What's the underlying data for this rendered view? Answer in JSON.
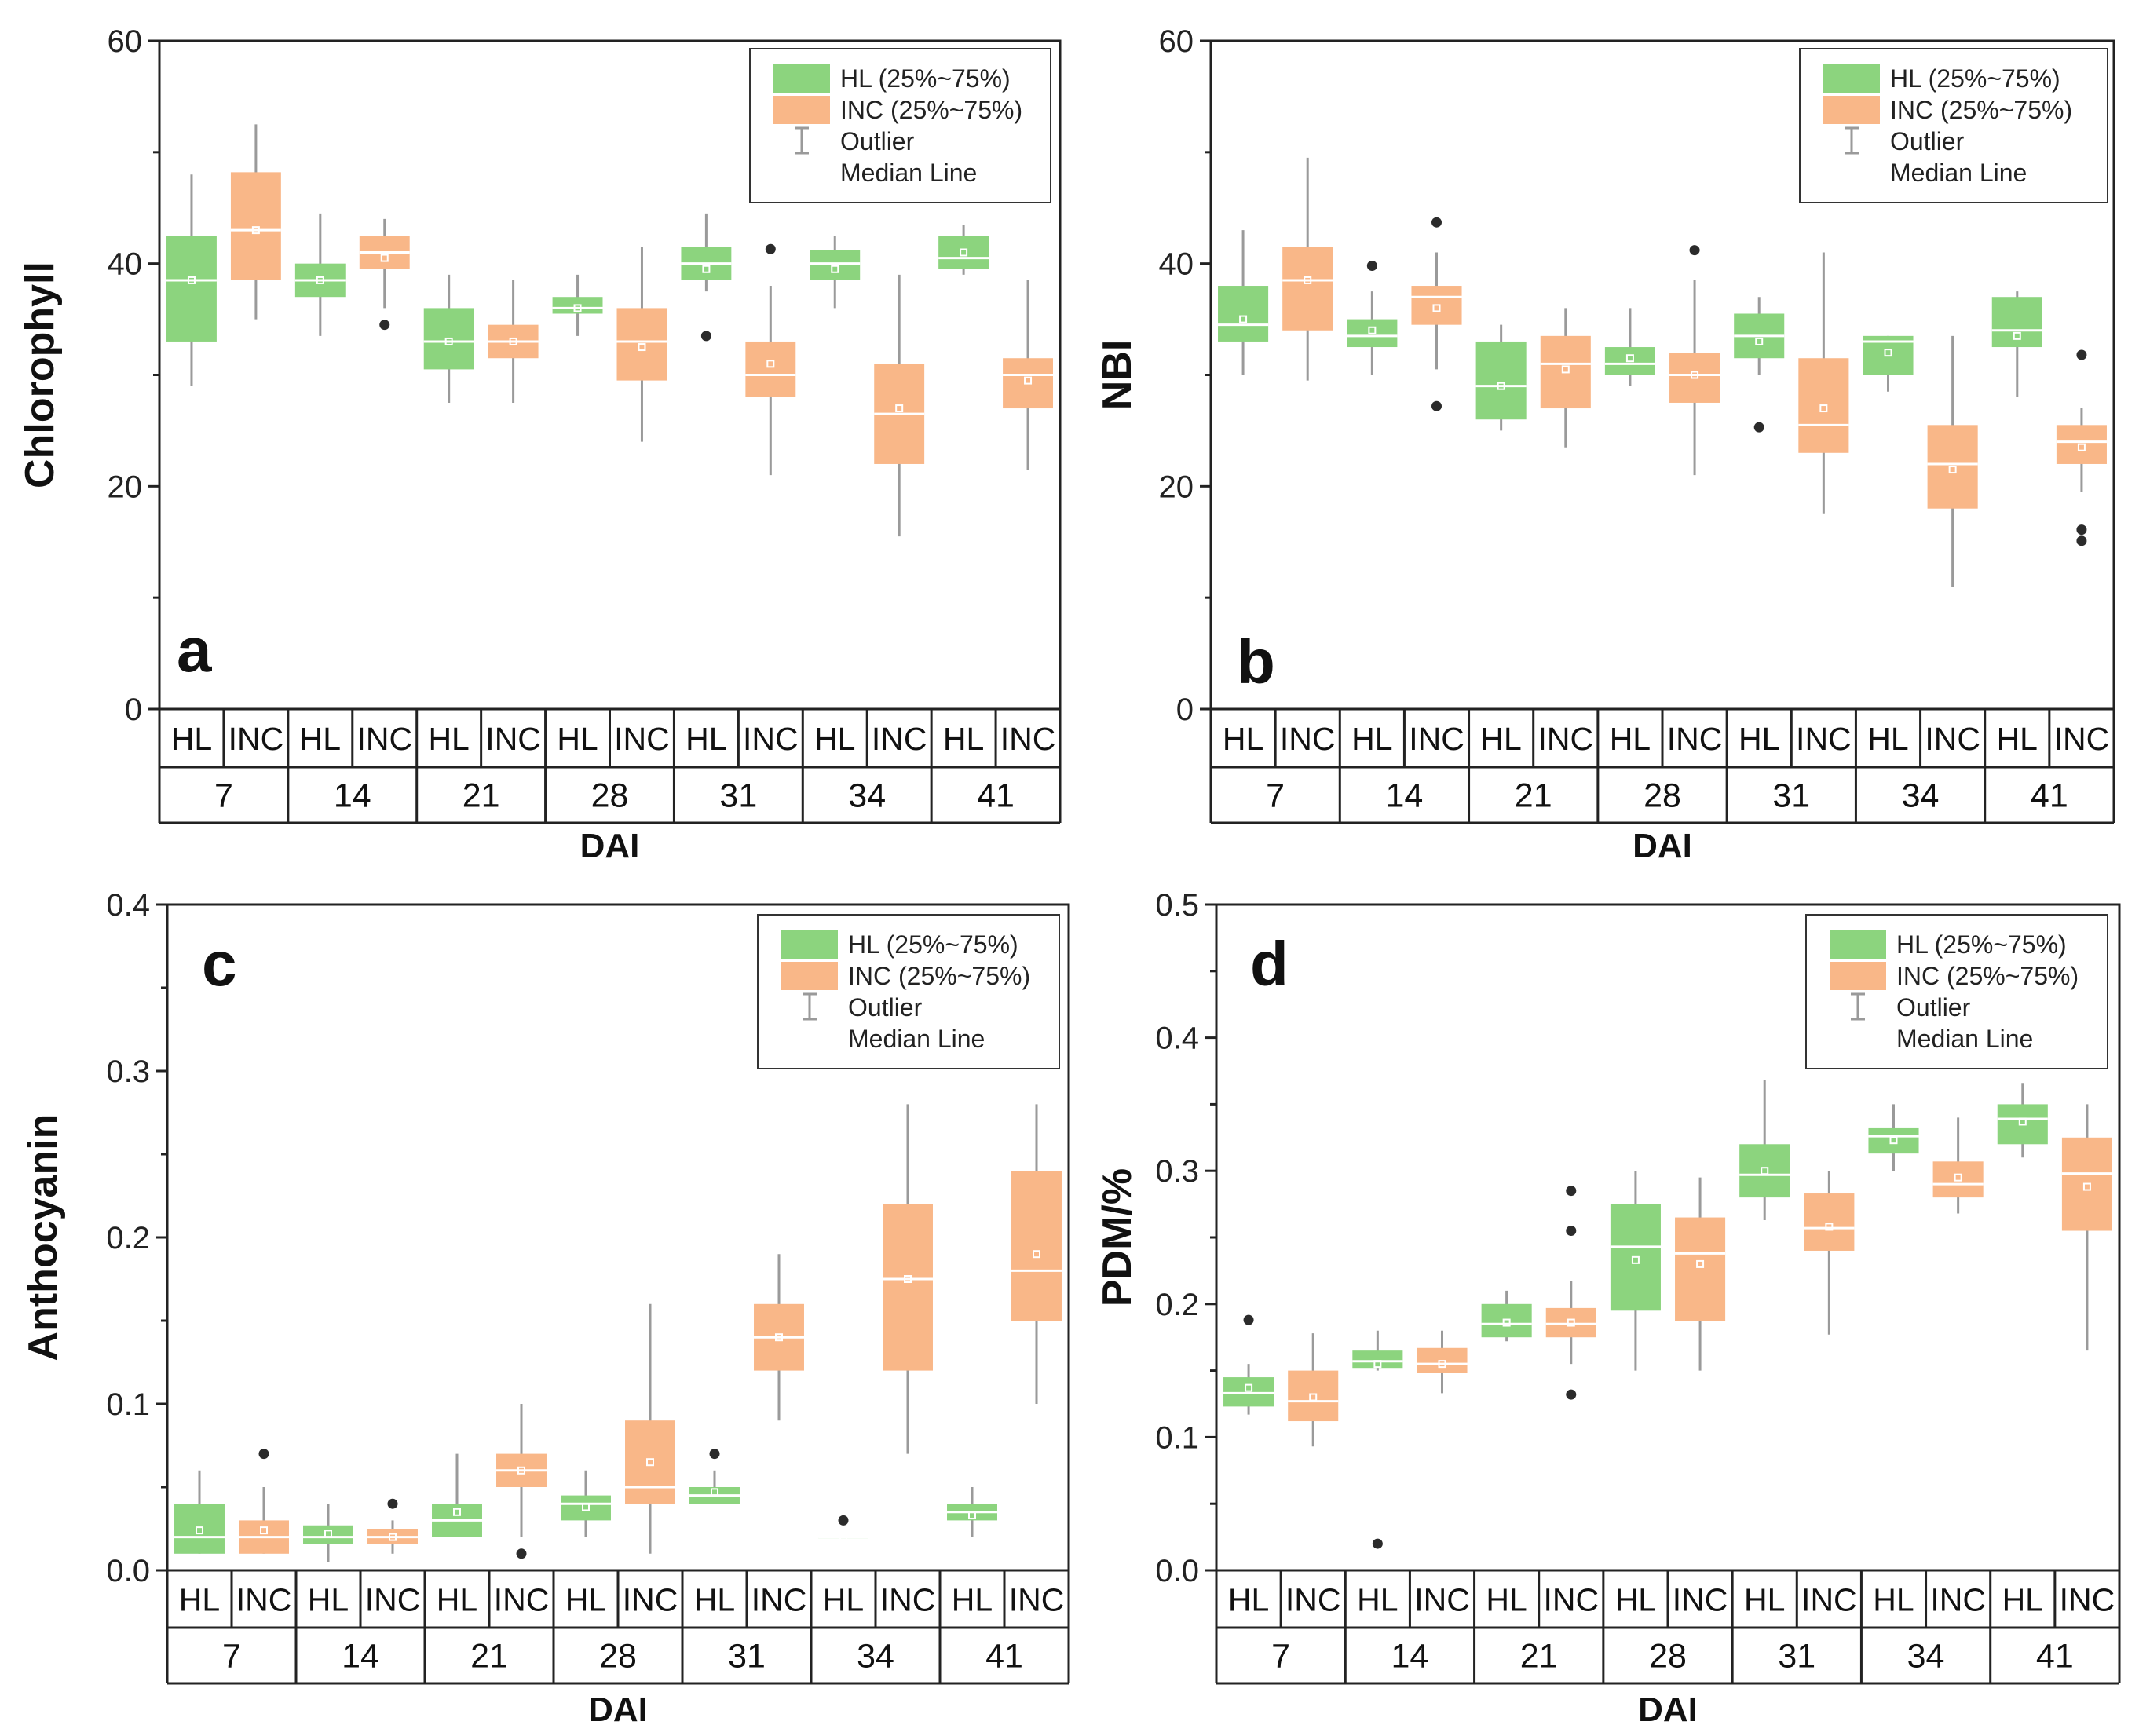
{
  "colors": {
    "hl": "#8cd47e",
    "inc": "#f9b788",
    "whisker": "#9a9a9a",
    "outlier": "#2b2b2b",
    "median": "#ffffff"
  },
  "chart_data": [
    {
      "type": "box",
      "panel_label": "a",
      "ylabel": "Chlorophyll",
      "xlabel": "DAI",
      "ylim": [
        0,
        60
      ],
      "yticks": [
        0,
        20,
        40,
        60
      ],
      "ytick_labels": [
        "0",
        "20",
        "40",
        "60"
      ],
      "days": [
        "7",
        "14",
        "21",
        "28",
        "31",
        "34",
        "41"
      ],
      "group_labels": [
        "HL",
        "INC"
      ],
      "legend": {
        "position": "top-right",
        "entries": [
          "HL (25%~75%)",
          "INC (25%~75%)",
          "Outlier",
          "Median Line"
        ]
      },
      "series": [
        {
          "name": "HL",
          "boxes": [
            {
              "day": "7",
              "whisker_low": 29,
              "q1": 33,
              "median": 38.5,
              "q3": 42.5,
              "whisker_high": 48,
              "mean": 38.5,
              "outliers": []
            },
            {
              "day": "14",
              "whisker_low": 33.5,
              "q1": 37,
              "median": 38.5,
              "q3": 40,
              "whisker_high": 44.5,
              "mean": 38.5,
              "outliers": []
            },
            {
              "day": "21",
              "whisker_low": 27.5,
              "q1": 30.5,
              "median": 33,
              "q3": 36,
              "whisker_high": 39,
              "mean": 33,
              "outliers": []
            },
            {
              "day": "28",
              "whisker_low": 33.5,
              "q1": 35.5,
              "median": 36,
              "q3": 37,
              "whisker_high": 39,
              "mean": 36,
              "outliers": []
            },
            {
              "day": "31",
              "whisker_low": 37.5,
              "q1": 38.5,
              "median": 40,
              "q3": 41.5,
              "whisker_high": 44.5,
              "mean": 39.5,
              "outliers": [
                33.5
              ]
            },
            {
              "day": "34",
              "whisker_low": 36,
              "q1": 38.5,
              "median": 40,
              "q3": 41.2,
              "whisker_high": 42.5,
              "mean": 39.5,
              "outliers": []
            },
            {
              "day": "41",
              "whisker_low": 39,
              "q1": 39.5,
              "median": 40.5,
              "q3": 42.5,
              "whisker_high": 43.5,
              "mean": 41,
              "outliers": []
            }
          ]
        },
        {
          "name": "INC",
          "boxes": [
            {
              "day": "7",
              "whisker_low": 35,
              "q1": 38.5,
              "median": 43,
              "q3": 48.2,
              "whisker_high": 52.5,
              "mean": 43,
              "outliers": []
            },
            {
              "day": "14",
              "whisker_low": 36,
              "q1": 39.5,
              "median": 41,
              "q3": 42.5,
              "whisker_high": 44,
              "mean": 40.5,
              "outliers": [
                34.5
              ]
            },
            {
              "day": "21",
              "whisker_low": 27.5,
              "q1": 31.5,
              "median": 33,
              "q3": 34.5,
              "whisker_high": 38.5,
              "mean": 33,
              "outliers": []
            },
            {
              "day": "28",
              "whisker_low": 24,
              "q1": 29.5,
              "median": 33,
              "q3": 36,
              "whisker_high": 41.5,
              "mean": 32.5,
              "outliers": []
            },
            {
              "day": "31",
              "whisker_low": 21,
              "q1": 28,
              "median": 30,
              "q3": 33,
              "whisker_high": 38,
              "mean": 31,
              "outliers": [
                41.3
              ]
            },
            {
              "day": "34",
              "whisker_low": 15.5,
              "q1": 22,
              "median": 26.5,
              "q3": 31,
              "whisker_high": 39,
              "mean": 27,
              "outliers": []
            },
            {
              "day": "41",
              "whisker_low": 21.5,
              "q1": 27,
              "median": 30,
              "q3": 31.5,
              "whisker_high": 38.5,
              "mean": 29.5,
              "outliers": []
            }
          ]
        }
      ]
    },
    {
      "type": "box",
      "panel_label": "b",
      "ylabel": "NBI",
      "xlabel": "DAI",
      "ylim": [
        0,
        60
      ],
      "yticks": [
        0,
        20,
        40,
        60
      ],
      "ytick_labels": [
        "0",
        "20",
        "40",
        "60"
      ],
      "days": [
        "7",
        "14",
        "21",
        "28",
        "31",
        "34",
        "41"
      ],
      "group_labels": [
        "HL",
        "INC"
      ],
      "legend": {
        "position": "top-right",
        "entries": [
          "HL (25%~75%)",
          "INC (25%~75%)",
          "Outlier",
          "Median Line"
        ]
      },
      "series": [
        {
          "name": "HL",
          "boxes": [
            {
              "day": "7",
              "whisker_low": 30,
              "q1": 33,
              "median": 34.5,
              "q3": 38,
              "whisker_high": 43,
              "mean": 35,
              "outliers": []
            },
            {
              "day": "14",
              "whisker_low": 30,
              "q1": 32.5,
              "median": 33.5,
              "q3": 35,
              "whisker_high": 37.5,
              "mean": 34,
              "outliers": [
                39.8
              ]
            },
            {
              "day": "21",
              "whisker_low": 25,
              "q1": 26,
              "median": 29,
              "q3": 33,
              "whisker_high": 34.5,
              "mean": 29,
              "outliers": []
            },
            {
              "day": "28",
              "whisker_low": 29,
              "q1": 30,
              "median": 31,
              "q3": 32.5,
              "whisker_high": 36,
              "mean": 31.5,
              "outliers": []
            },
            {
              "day": "31",
              "whisker_low": 30,
              "q1": 31.5,
              "median": 33.5,
              "q3": 35.5,
              "whisker_high": 37,
              "mean": 33,
              "outliers": [
                25.3
              ]
            },
            {
              "day": "34",
              "whisker_low": 28.5,
              "q1": 30,
              "median": 33,
              "q3": 33.5,
              "whisker_high": 33.5,
              "mean": 32,
              "outliers": []
            },
            {
              "day": "41",
              "whisker_low": 28,
              "q1": 32.5,
              "median": 34,
              "q3": 37,
              "whisker_high": 37.5,
              "mean": 33.5,
              "outliers": []
            }
          ]
        },
        {
          "name": "INC",
          "boxes": [
            {
              "day": "7",
              "whisker_low": 29.5,
              "q1": 34,
              "median": 38.5,
              "q3": 41.5,
              "whisker_high": 49.5,
              "mean": 38.5,
              "outliers": []
            },
            {
              "day": "14",
              "whisker_low": 30.5,
              "q1": 34.5,
              "median": 37,
              "q3": 38,
              "whisker_high": 41,
              "mean": 36,
              "outliers": [
                43.7,
                27.2
              ]
            },
            {
              "day": "21",
              "whisker_low": 23.5,
              "q1": 27,
              "median": 31,
              "q3": 33.5,
              "whisker_high": 36,
              "mean": 30.5,
              "outliers": []
            },
            {
              "day": "28",
              "whisker_low": 21,
              "q1": 27.5,
              "median": 30,
              "q3": 32,
              "whisker_high": 38.5,
              "mean": 30,
              "outliers": [
                41.2
              ]
            },
            {
              "day": "31",
              "whisker_low": 17.5,
              "q1": 23,
              "median": 25.5,
              "q3": 31.5,
              "whisker_high": 41,
              "mean": 27,
              "outliers": []
            },
            {
              "day": "34",
              "whisker_low": 11,
              "q1": 18,
              "median": 22,
              "q3": 25.5,
              "whisker_high": 33.5,
              "mean": 21.5,
              "outliers": []
            },
            {
              "day": "41",
              "whisker_low": 19.5,
              "q1": 22,
              "median": 24,
              "q3": 25.5,
              "whisker_high": 27,
              "mean": 23.5,
              "outliers": [
                31.8,
                16.1,
                15.1
              ]
            }
          ]
        }
      ]
    },
    {
      "type": "box",
      "panel_label": "c",
      "ylabel": "Anthocyanin",
      "xlabel": "DAI",
      "ylim": [
        0,
        0.4
      ],
      "yticks": [
        0,
        0.1,
        0.2,
        0.3,
        0.4
      ],
      "ytick_labels": [
        "0.0",
        "0.1",
        "0.2",
        "0.3",
        "0.4"
      ],
      "days": [
        "7",
        "14",
        "21",
        "28",
        "31",
        "34",
        "41"
      ],
      "group_labels": [
        "HL",
        "INC"
      ],
      "legend": {
        "position": "top-right",
        "entries": [
          "HL (25%~75%)",
          "INC (25%~75%)",
          "Outlier",
          "Median Line"
        ]
      },
      "series": [
        {
          "name": "HL",
          "boxes": [
            {
              "day": "7",
              "whisker_low": 0.01,
              "q1": 0.01,
              "median": 0.02,
              "q3": 0.04,
              "whisker_high": 0.06,
              "mean": 0.024,
              "outliers": []
            },
            {
              "day": "14",
              "whisker_low": 0.005,
              "q1": 0.016,
              "median": 0.02,
              "q3": 0.027,
              "whisker_high": 0.04,
              "mean": 0.022,
              "outliers": []
            },
            {
              "day": "21",
              "whisker_low": 0.02,
              "q1": 0.02,
              "median": 0.03,
              "q3": 0.04,
              "whisker_high": 0.07,
              "mean": 0.035,
              "outliers": []
            },
            {
              "day": "28",
              "whisker_low": 0.02,
              "q1": 0.03,
              "median": 0.04,
              "q3": 0.045,
              "whisker_high": 0.06,
              "mean": 0.038,
              "outliers": []
            },
            {
              "day": "31",
              "whisker_low": 0.04,
              "q1": 0.04,
              "median": 0.045,
              "q3": 0.05,
              "whisker_high": 0.06,
              "mean": 0.047,
              "outliers": [
                0.07
              ]
            },
            {
              "day": "34",
              "whisker_low": 0.02,
              "q1": 0.02,
              "median": 0.02,
              "q3": 0.02,
              "whisker_high": 0.02,
              "mean": 0.02,
              "outliers": [
                0.03
              ]
            },
            {
              "day": "41",
              "whisker_low": 0.02,
              "q1": 0.03,
              "median": 0.035,
              "q3": 0.04,
              "whisker_high": 0.05,
              "mean": 0.033,
              "outliers": []
            }
          ]
        },
        {
          "name": "INC",
          "boxes": [
            {
              "day": "7",
              "whisker_low": 0.01,
              "q1": 0.01,
              "median": 0.02,
              "q3": 0.03,
              "whisker_high": 0.05,
              "mean": 0.024,
              "outliers": [
                0.07
              ]
            },
            {
              "day": "14",
              "whisker_low": 0.01,
              "q1": 0.016,
              "median": 0.02,
              "q3": 0.025,
              "whisker_high": 0.03,
              "mean": 0.02,
              "outliers": [
                0.04
              ]
            },
            {
              "day": "21",
              "whisker_low": 0.02,
              "q1": 0.05,
              "median": 0.06,
              "q3": 0.07,
              "whisker_high": 0.1,
              "mean": 0.06,
              "outliers": [
                0.01
              ]
            },
            {
              "day": "28",
              "whisker_low": 0.01,
              "q1": 0.04,
              "median": 0.05,
              "q3": 0.09,
              "whisker_high": 0.16,
              "mean": 0.065,
              "outliers": []
            },
            {
              "day": "31",
              "whisker_low": 0.09,
              "q1": 0.12,
              "median": 0.14,
              "q3": 0.16,
              "whisker_high": 0.19,
              "mean": 0.14,
              "outliers": []
            },
            {
              "day": "34",
              "whisker_low": 0.07,
              "q1": 0.12,
              "median": 0.175,
              "q3": 0.22,
              "whisker_high": 0.28,
              "mean": 0.175,
              "outliers": []
            },
            {
              "day": "41",
              "whisker_low": 0.1,
              "q1": 0.15,
              "median": 0.18,
              "q3": 0.24,
              "whisker_high": 0.28,
              "mean": 0.19,
              "outliers": []
            }
          ]
        }
      ]
    },
    {
      "type": "box",
      "panel_label": "d",
      "ylabel": "PDM/%",
      "xlabel": "DAI",
      "ylim": [
        0,
        0.5
      ],
      "yticks": [
        0,
        0.1,
        0.2,
        0.3,
        0.4,
        0.5
      ],
      "ytick_labels": [
        "0.0",
        "0.1",
        "0.2",
        "0.3",
        "0.4",
        "0.5"
      ],
      "days": [
        "7",
        "14",
        "21",
        "28",
        "31",
        "34",
        "41"
      ],
      "group_labels": [
        "HL",
        "INC"
      ],
      "legend": {
        "position": "top-right",
        "entries": [
          "HL (25%~75%)",
          "INC (25%~75%)",
          "Outlier",
          "Median Line"
        ]
      },
      "series": [
        {
          "name": "HL",
          "boxes": [
            {
              "day": "7",
              "whisker_low": 0.117,
              "q1": 0.123,
              "median": 0.133,
              "q3": 0.145,
              "whisker_high": 0.155,
              "mean": 0.137,
              "outliers": [
                0.188
              ]
            },
            {
              "day": "14",
              "whisker_low": 0.15,
              "q1": 0.152,
              "median": 0.157,
              "q3": 0.165,
              "whisker_high": 0.18,
              "mean": 0.155,
              "outliers": [
                0.02
              ]
            },
            {
              "day": "21",
              "whisker_low": 0.172,
              "q1": 0.175,
              "median": 0.185,
              "q3": 0.2,
              "whisker_high": 0.21,
              "mean": 0.186,
              "outliers": []
            },
            {
              "day": "28",
              "whisker_low": 0.15,
              "q1": 0.195,
              "median": 0.243,
              "q3": 0.275,
              "whisker_high": 0.3,
              "mean": 0.233,
              "outliers": []
            },
            {
              "day": "31",
              "whisker_low": 0.263,
              "q1": 0.28,
              "median": 0.297,
              "q3": 0.32,
              "whisker_high": 0.368,
              "mean": 0.3,
              "outliers": []
            },
            {
              "day": "34",
              "whisker_low": 0.3,
              "q1": 0.313,
              "median": 0.326,
              "q3": 0.332,
              "whisker_high": 0.35,
              "mean": 0.323,
              "outliers": []
            },
            {
              "day": "41",
              "whisker_low": 0.31,
              "q1": 0.32,
              "median": 0.339,
              "q3": 0.35,
              "whisker_high": 0.366,
              "mean": 0.337,
              "outliers": []
            }
          ]
        },
        {
          "name": "INC",
          "boxes": [
            {
              "day": "7",
              "whisker_low": 0.093,
              "q1": 0.112,
              "median": 0.127,
              "q3": 0.15,
              "whisker_high": 0.178,
              "mean": 0.13,
              "outliers": []
            },
            {
              "day": "14",
              "whisker_low": 0.133,
              "q1": 0.148,
              "median": 0.155,
              "q3": 0.167,
              "whisker_high": 0.18,
              "mean": 0.155,
              "outliers": []
            },
            {
              "day": "21",
              "whisker_low": 0.155,
              "q1": 0.175,
              "median": 0.185,
              "q3": 0.197,
              "whisker_high": 0.217,
              "mean": 0.186,
              "outliers": [
                0.285,
                0.255,
                0.132
              ]
            },
            {
              "day": "28",
              "whisker_low": 0.15,
              "q1": 0.187,
              "median": 0.238,
              "q3": 0.265,
              "whisker_high": 0.295,
              "mean": 0.23,
              "outliers": []
            },
            {
              "day": "31",
              "whisker_low": 0.177,
              "q1": 0.24,
              "median": 0.257,
              "q3": 0.283,
              "whisker_high": 0.3,
              "mean": 0.258,
              "outliers": []
            },
            {
              "day": "34",
              "whisker_low": 0.268,
              "q1": 0.28,
              "median": 0.29,
              "q3": 0.307,
              "whisker_high": 0.34,
              "mean": 0.295,
              "outliers": []
            },
            {
              "day": "41",
              "whisker_low": 0.165,
              "q1": 0.255,
              "median": 0.298,
              "q3": 0.325,
              "whisker_high": 0.35,
              "mean": 0.288,
              "outliers": []
            }
          ]
        }
      ]
    }
  ]
}
